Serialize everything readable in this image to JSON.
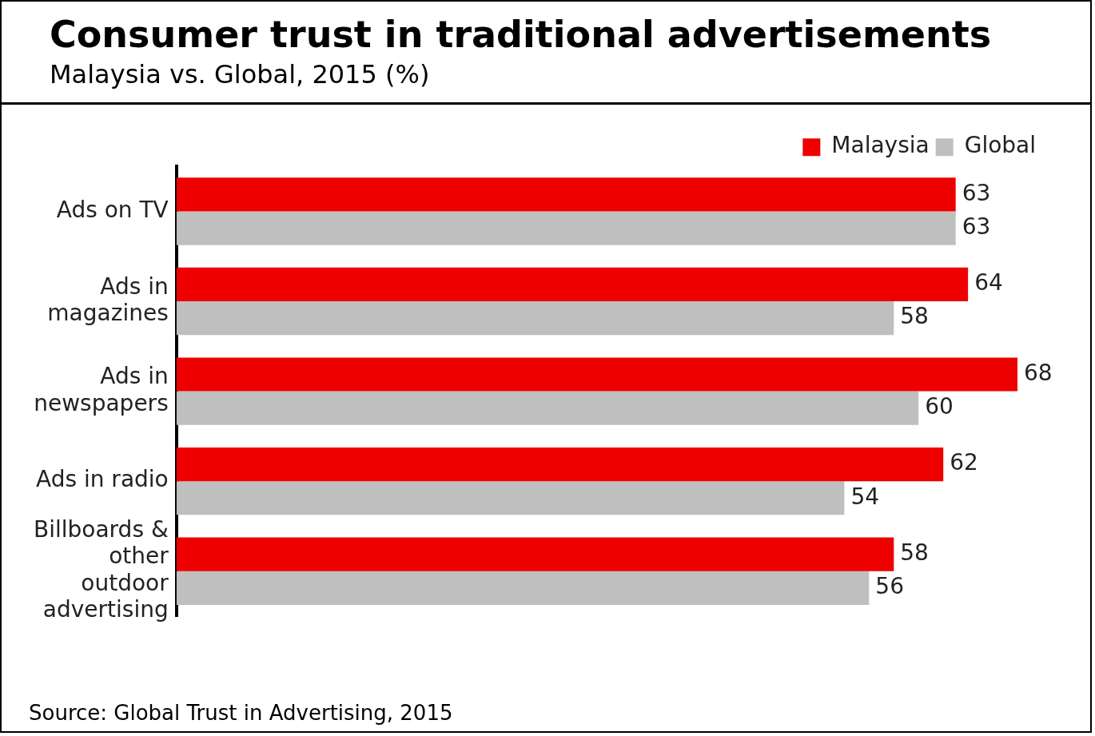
{
  "chart_data": {
    "type": "bar",
    "orientation": "horizontal",
    "title": "Consumer trust in traditional advertisements",
    "subtitle": "Malaysia vs. Global, 2015 (%)",
    "categories": [
      "Ads on TV",
      "Ads in magazines",
      "Ads in newspapers",
      "Ads in radio",
      "Billboards & other outdoor advertising"
    ],
    "series": [
      {
        "name": "Malaysia",
        "color": "#ee0000",
        "values": [
          63,
          64,
          68,
          62,
          58
        ]
      },
      {
        "name": "Global",
        "color": "#bfbfbf",
        "values": [
          63,
          58,
          60,
          54,
          56
        ]
      }
    ],
    "data_labels": true,
    "legend": "top right",
    "tick_labels": "y",
    "grid": false,
    "annotations": [
      "Source: Global Trust in Advertising, 2015"
    ]
  }
}
